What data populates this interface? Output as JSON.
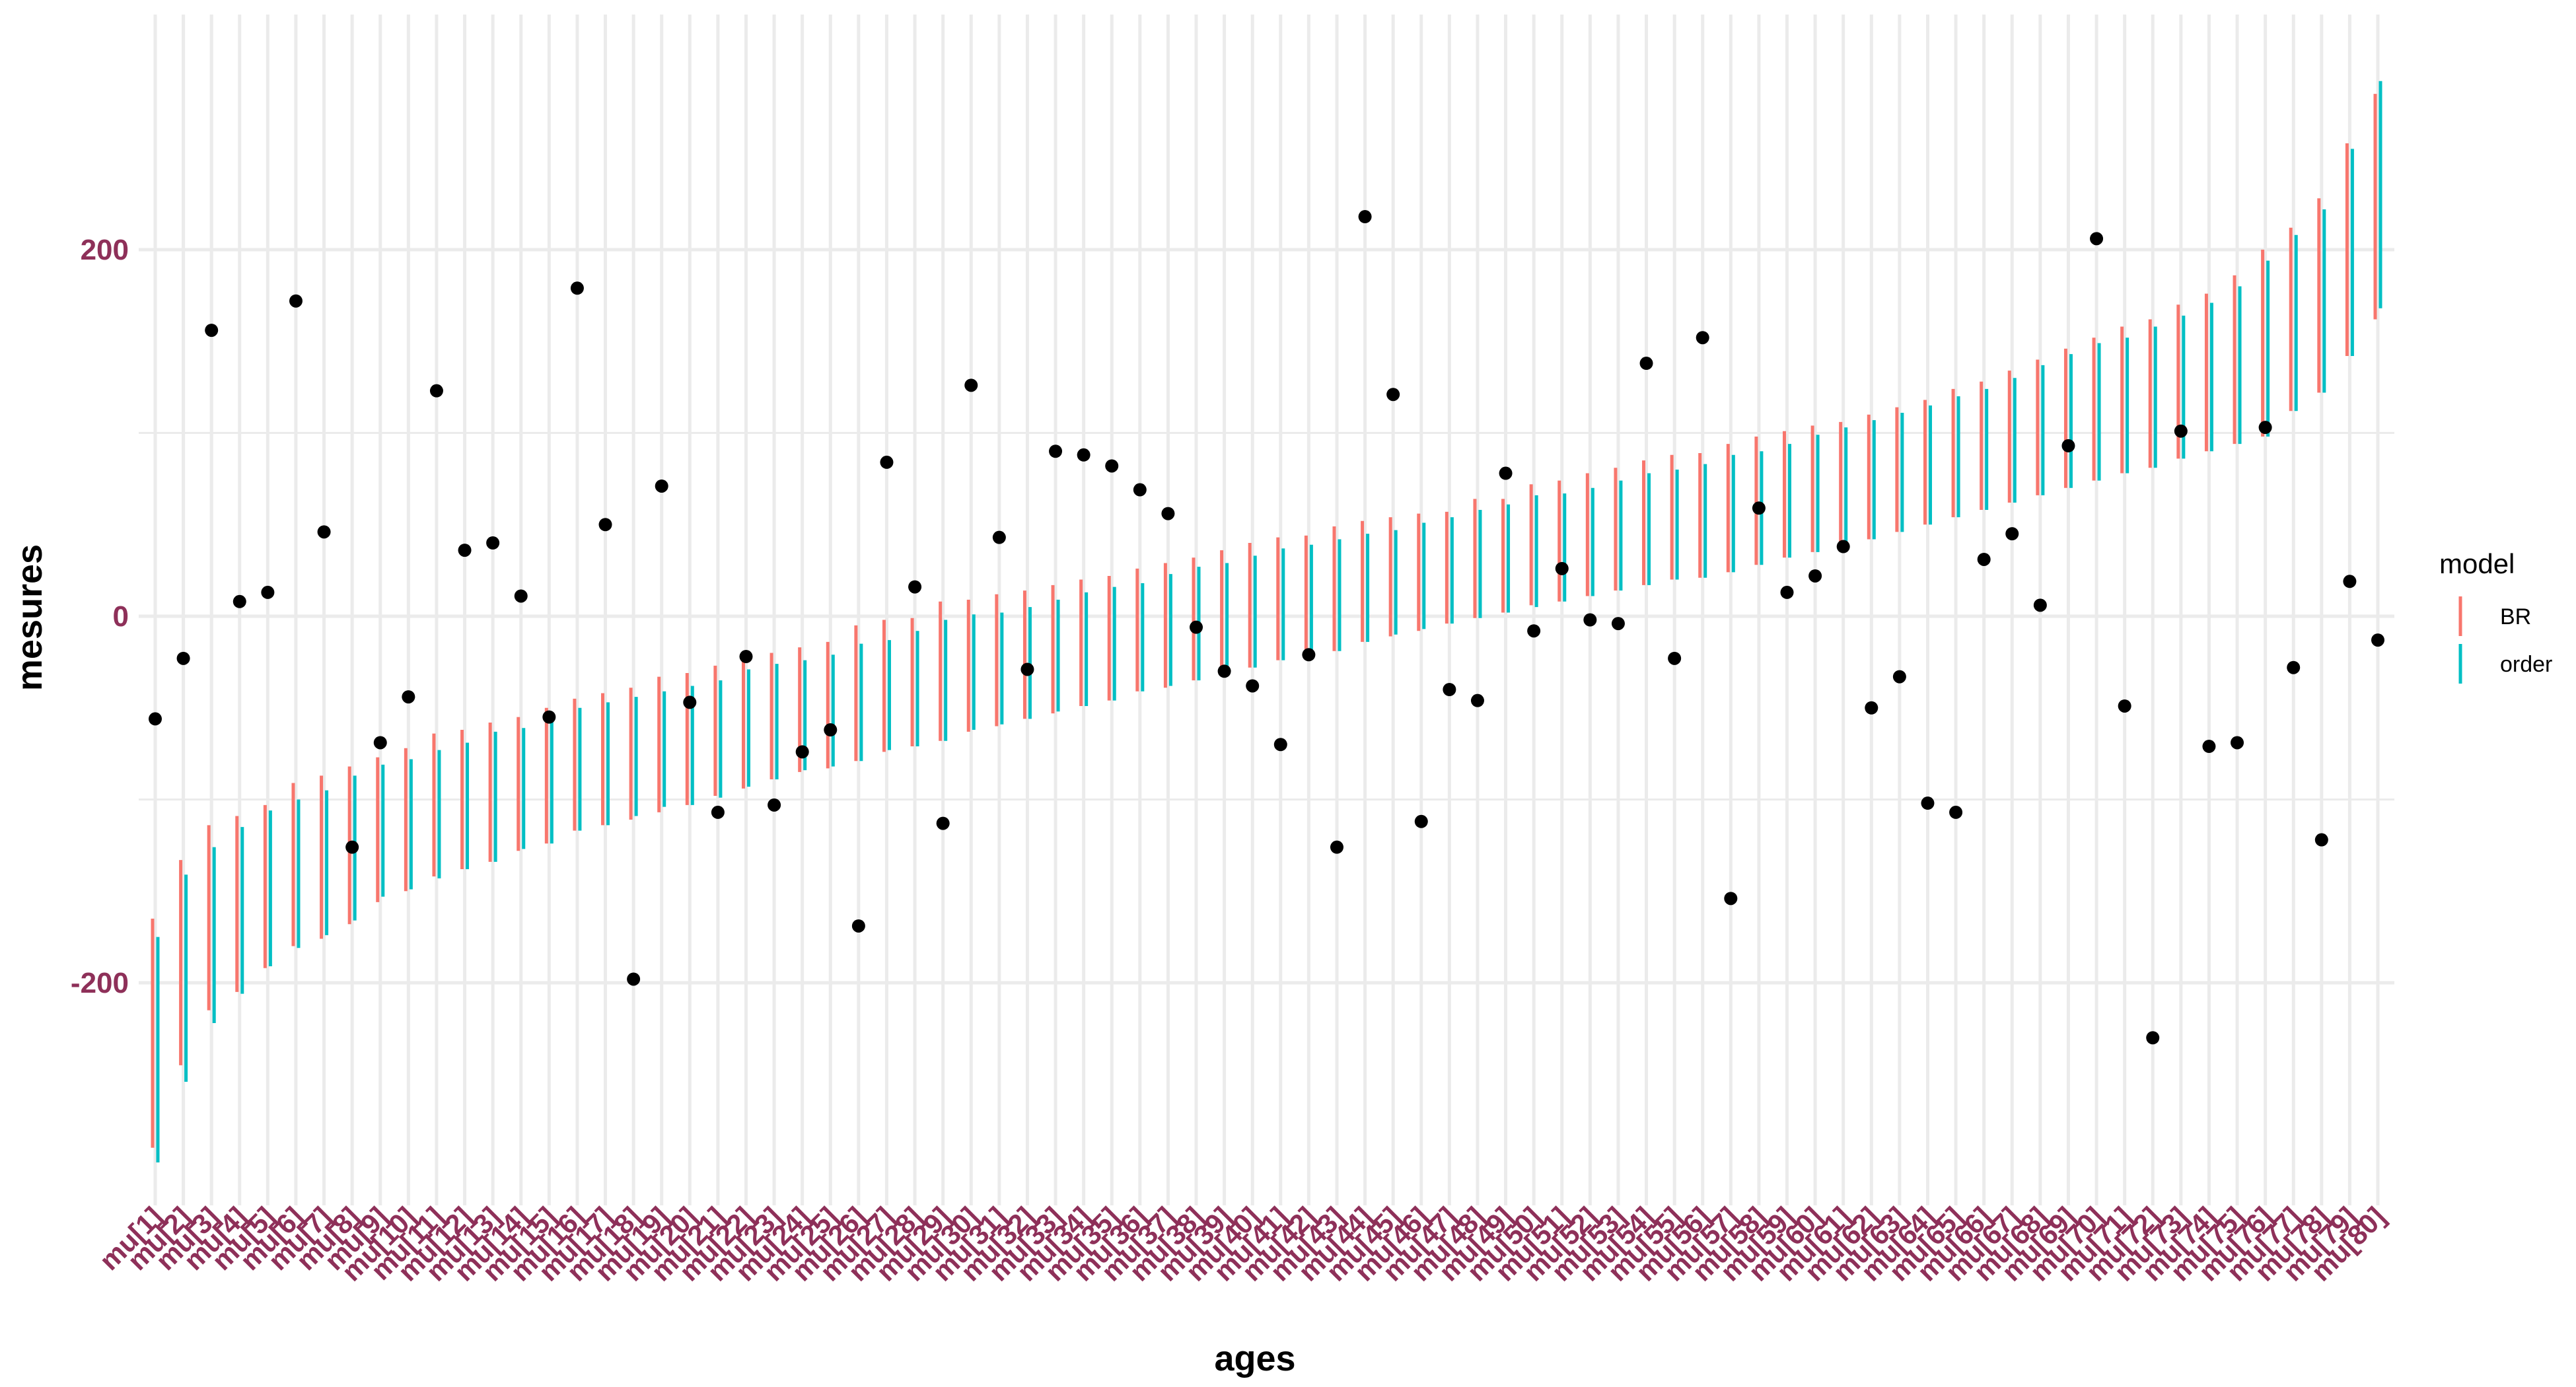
{
  "chart_data": {
    "type": "interval",
    "xlabel": "ages",
    "ylabel": "mesures",
    "ylim": [
      -300,
      295
    ],
    "yticks": [
      -200,
      0,
      200
    ],
    "grid": true,
    "legend": {
      "title": "model",
      "position": "right",
      "entries": [
        "BR",
        "order"
      ]
    },
    "colors": {
      "BR": "#F8766D",
      "order": "#00BFC4",
      "points": "#000000",
      "tick_labels": "#8E3059",
      "grid": "#EBEBEB"
    },
    "categories": [
      "mu[1]",
      "mu[2]",
      "mu[3]",
      "mu[4]",
      "mu[5]",
      "mu[6]",
      "mu[7]",
      "mu[8]",
      "mu[9]",
      "mu[10]",
      "mu[11]",
      "mu[12]",
      "mu[13]",
      "mu[14]",
      "mu[15]",
      "mu[16]",
      "mu[17]",
      "mu[18]",
      "mu[19]",
      "mu[20]",
      "mu[21]",
      "mu[22]",
      "mu[23]",
      "mu[24]",
      "mu[25]",
      "mu[26]",
      "mu[27]",
      "mu[28]",
      "mu[29]",
      "mu[30]",
      "mu[31]",
      "mu[32]",
      "mu[33]",
      "mu[34]",
      "mu[35]",
      "mu[36]",
      "mu[37]",
      "mu[38]",
      "mu[39]",
      "mu[40]",
      "mu[41]",
      "mu[42]",
      "mu[43]",
      "mu[44]",
      "mu[45]",
      "mu[46]",
      "mu[47]",
      "mu[48]",
      "mu[49]",
      "mu[50]",
      "mu[51]",
      "mu[52]",
      "mu[53]",
      "mu[54]",
      "mu[55]",
      "mu[56]",
      "mu[57]",
      "mu[58]",
      "mu[59]",
      "mu[60]",
      "mu[61]",
      "mu[62]",
      "mu[63]",
      "mu[64]",
      "mu[65]",
      "mu[66]",
      "mu[67]",
      "mu[68]",
      "mu[69]",
      "mu[70]",
      "mu[71]",
      "mu[72]",
      "mu[73]",
      "mu[74]",
      "mu[75]",
      "mu[76]",
      "mu[77]",
      "mu[78]",
      "mu[79]",
      "mu[80]"
    ],
    "series": [
      {
        "name": "BR",
        "low": [
          -290,
          -245,
          -215,
          -205,
          -192,
          -180,
          -176,
          -168,
          -156,
          -150,
          -142,
          -138,
          -134,
          -128,
          -124,
          -117,
          -114,
          -111,
          -107,
          -103,
          -98,
          -94,
          -89,
          -85,
          -83,
          -79,
          -74,
          -71,
          -68,
          -63,
          -60,
          -56,
          -53,
          -49,
          -46,
          -41,
          -39,
          -35,
          -31,
          -28,
          -24,
          -22,
          -19,
          -14,
          -11,
          -8,
          -4,
          -1,
          2,
          6,
          8,
          11,
          14,
          17,
          20,
          21,
          24,
          28,
          32,
          35,
          38,
          42,
          46,
          50,
          54,
          58,
          62,
          66,
          70,
          74,
          78,
          81,
          86,
          90,
          94,
          98,
          112,
          122,
          142,
          162
        ],
        "high": [
          -165,
          -133,
          -114,
          -109,
          -103,
          -91,
          -87,
          -82,
          -77,
          -72,
          -64,
          -62,
          -58,
          -55,
          -50,
          -45,
          -42,
          -39,
          -33,
          -31,
          -27,
          -22,
          -20,
          -17,
          -14,
          -5,
          -2,
          -1,
          8,
          9,
          12,
          14,
          17,
          20,
          22,
          26,
          29,
          32,
          36,
          40,
          43,
          44,
          49,
          52,
          54,
          56,
          57,
          64,
          64,
          72,
          74,
          78,
          81,
          85,
          88,
          89,
          94,
          98,
          101,
          104,
          106,
          110,
          114,
          118,
          124,
          128,
          134,
          140,
          146,
          152,
          158,
          162,
          170,
          176,
          186,
          200,
          212,
          228,
          258,
          285
        ]
      },
      {
        "name": "order",
        "low": [
          -298,
          -254,
          -222,
          -206,
          -191,
          -181,
          -174,
          -166,
          -153,
          -149,
          -143,
          -138,
          -134,
          -127,
          -124,
          -117,
          -114,
          -109,
          -104,
          -103,
          -99,
          -93,
          -89,
          -84,
          -82,
          -79,
          -73,
          -71,
          -68,
          -62,
          -59,
          -56,
          -52,
          -49,
          -46,
          -41,
          -38,
          -35,
          -32,
          -28,
          -24,
          -22,
          -19,
          -14,
          -10,
          -7,
          -4,
          -1,
          2,
          5,
          8,
          11,
          14,
          17,
          20,
          21,
          24,
          28,
          32,
          35,
          38,
          42,
          46,
          50,
          54,
          58,
          62,
          66,
          70,
          74,
          78,
          81,
          86,
          90,
          94,
          98,
          112,
          122,
          142,
          168
        ],
        "high": [
          -175,
          -141,
          -126,
          -115,
          -106,
          -100,
          -95,
          -87,
          -81,
          -78,
          -73,
          -69,
          -63,
          -61,
          -57,
          -50,
          -47,
          -44,
          -41,
          -38,
          -35,
          -29,
          -26,
          -24,
          -21,
          -15,
          -13,
          -8,
          -2,
          1,
          2,
          5,
          9,
          13,
          16,
          18,
          23,
          27,
          29,
          33,
          37,
          39,
          42,
          45,
          47,
          51,
          54,
          58,
          61,
          66,
          67,
          70,
          74,
          78,
          80,
          83,
          88,
          90,
          94,
          99,
          103,
          107,
          111,
          115,
          120,
          124,
          130,
          137,
          143,
          149,
          152,
          158,
          164,
          171,
          180,
          194,
          208,
          222,
          255,
          292
        ]
      }
    ],
    "points": [
      -56,
      -23,
      156,
      8,
      13,
      172,
      46,
      -126,
      -69,
      -44,
      123,
      36,
      40,
      11,
      -55,
      179,
      50,
      -198,
      71,
      -47,
      -107,
      -22,
      -103,
      -74,
      -62,
      -169,
      84,
      16,
      -113,
      126,
      43,
      -29,
      90,
      88,
      82,
      69,
      56,
      -6,
      -30,
      -38,
      -70,
      -21,
      -126,
      218,
      121,
      -112,
      -40,
      -46,
      78,
      -8,
      26,
      -2,
      -4,
      138,
      -23,
      152,
      -154,
      59,
      13,
      22,
      38,
      -50,
      -33,
      -102,
      -107,
      31,
      45,
      6,
      93,
      206,
      -49,
      -230,
      101,
      -71,
      -69,
      103,
      -28,
      -122,
      19,
      -13
    ]
  }
}
